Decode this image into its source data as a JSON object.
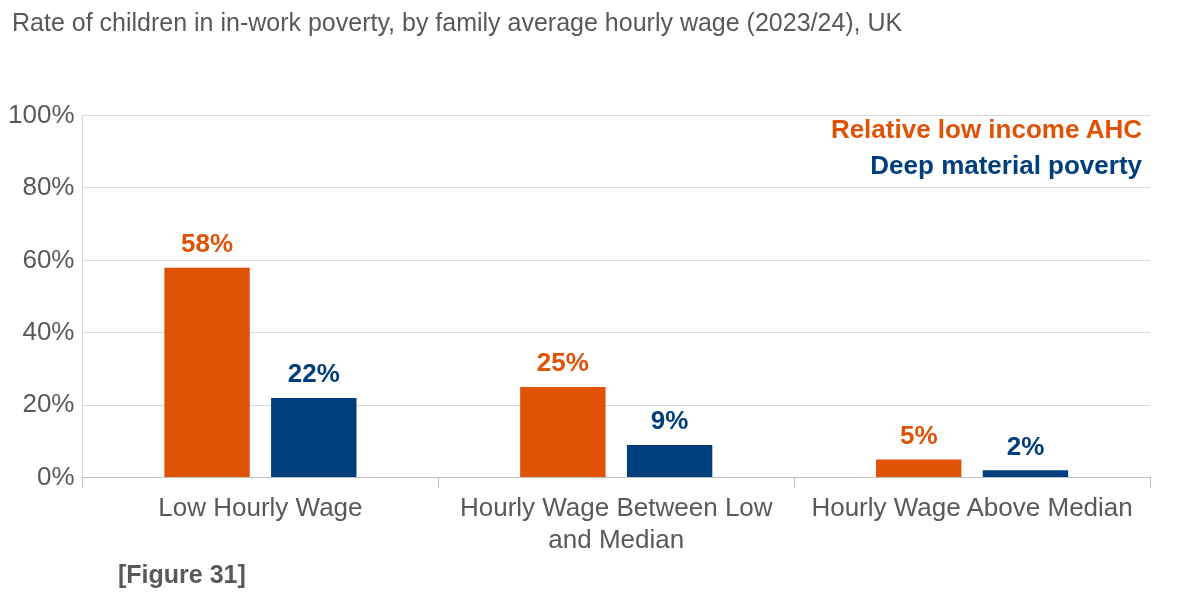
{
  "chart_data": {
    "type": "bar",
    "title": "Rate of children in in-work poverty, by family average hourly wage (2023/24), UK",
    "categories": [
      "Low Hourly Wage",
      "Hourly Wage Between Low and Median",
      "Hourly Wage Above Median"
    ],
    "series": [
      {
        "name": "Relative low income AHC",
        "color": "#e05206",
        "values": [
          58,
          25,
          5
        ],
        "value_labels": [
          "58%",
          "25%",
          "5%"
        ]
      },
      {
        "name": "Deep material poverty",
        "color": "#003f7d",
        "values": [
          22,
          9,
          2
        ],
        "value_labels": [
          "22%",
          "9%",
          "2%"
        ]
      }
    ],
    "ylim": [
      0,
      100
    ],
    "yticks": [
      {
        "value": 0,
        "label": "0%"
      },
      {
        "value": 20,
        "label": "20%"
      },
      {
        "value": 40,
        "label": "40%"
      },
      {
        "value": 60,
        "label": "60%"
      },
      {
        "value": 80,
        "label": "80%"
      },
      {
        "value": 100,
        "label": "100%"
      }
    ],
    "grid": "y",
    "legend": "top right",
    "annotations": [
      "[Figure 31]"
    ]
  }
}
